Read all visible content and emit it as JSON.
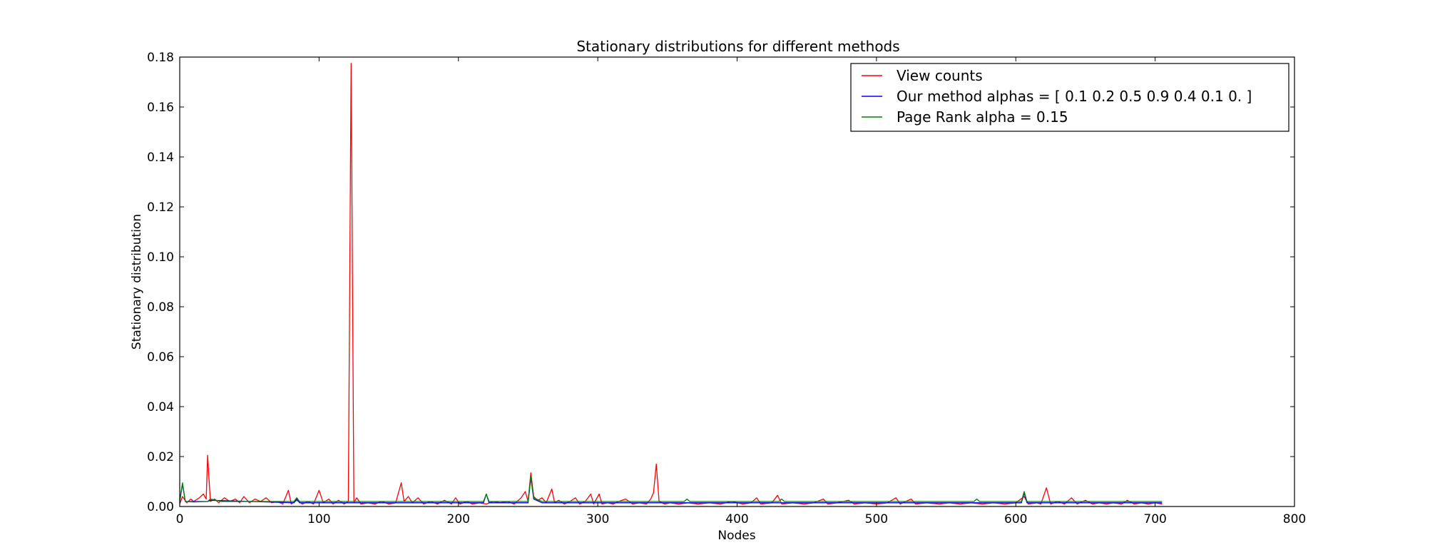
{
  "chart_data": {
    "type": "line",
    "title": "Stationary distributions for different methods",
    "xlabel": "Nodes",
    "ylabel": "Stationary distribution",
    "xlim": [
      0,
      800
    ],
    "ylim": [
      0,
      0.18
    ],
    "xticks": [
      "0",
      "100",
      "200",
      "300",
      "400",
      "500",
      "600",
      "700",
      "800"
    ],
    "yticks": [
      "0.00",
      "0.02",
      "0.04",
      "0.06",
      "0.08",
      "0.10",
      "0.12",
      "0.14",
      "0.16",
      "0.18"
    ],
    "legend_position": "top-right",
    "grid": false,
    "series": [
      {
        "name": "View counts",
        "color": "#ff0000",
        "points": [
          [
            0,
            0.001
          ],
          [
            2,
            0.004
          ],
          [
            5,
            0.0015
          ],
          [
            8,
            0.003
          ],
          [
            10,
            0.002
          ],
          [
            14,
            0.0035
          ],
          [
            17,
            0.005
          ],
          [
            19,
            0.003
          ],
          [
            20,
            0.0205
          ],
          [
            22,
            0.002
          ],
          [
            25,
            0.003
          ],
          [
            28,
            0.0015
          ],
          [
            32,
            0.0035
          ],
          [
            36,
            0.002
          ],
          [
            40,
            0.003
          ],
          [
            43,
            0.0015
          ],
          [
            46,
            0.004
          ],
          [
            50,
            0.0015
          ],
          [
            54,
            0.003
          ],
          [
            58,
            0.002
          ],
          [
            62,
            0.0035
          ],
          [
            66,
            0.0015
          ],
          [
            70,
            0.002
          ],
          [
            74,
            0.001
          ],
          [
            78,
            0.0065
          ],
          [
            80,
            0.001
          ],
          [
            84,
            0.0025
          ],
          [
            88,
            0.001
          ],
          [
            92,
            0.002
          ],
          [
            96,
            0.001
          ],
          [
            100,
            0.0065
          ],
          [
            103,
            0.0015
          ],
          [
            107,
            0.003
          ],
          [
            110,
            0.001
          ],
          [
            114,
            0.0025
          ],
          [
            118,
            0.001
          ],
          [
            121,
            0.002
          ],
          [
            123,
            0.1775
          ],
          [
            125,
            0.0015
          ],
          [
            127,
            0.0035
          ],
          [
            130,
            0.001
          ],
          [
            135,
            0.0015
          ],
          [
            140,
            0.001
          ],
          [
            145,
            0.002
          ],
          [
            150,
            0.001
          ],
          [
            155,
            0.0015
          ],
          [
            159,
            0.0095
          ],
          [
            161,
            0.002
          ],
          [
            164,
            0.004
          ],
          [
            167,
            0.0015
          ],
          [
            171,
            0.0035
          ],
          [
            175,
            0.001
          ],
          [
            180,
            0.002
          ],
          [
            185,
            0.001
          ],
          [
            190,
            0.0025
          ],
          [
            195,
            0.001
          ],
          [
            198,
            0.0035
          ],
          [
            201,
            0.001
          ],
          [
            206,
            0.002
          ],
          [
            210,
            0.001
          ],
          [
            215,
            0.0015
          ],
          [
            220,
            0.001
          ],
          [
            225,
            0.002
          ],
          [
            230,
            0.0015
          ],
          [
            235,
            0.002
          ],
          [
            240,
            0.001
          ],
          [
            245,
            0.0035
          ],
          [
            248,
            0.006
          ],
          [
            250,
            0.002
          ],
          [
            252,
            0.0135
          ],
          [
            254,
            0.004
          ],
          [
            257,
            0.0025
          ],
          [
            260,
            0.0035
          ],
          [
            263,
            0.0015
          ],
          [
            267,
            0.007
          ],
          [
            269,
            0.0015
          ],
          [
            272,
            0.0025
          ],
          [
            276,
            0.001
          ],
          [
            280,
            0.002
          ],
          [
            284,
            0.0035
          ],
          [
            287,
            0.001
          ],
          [
            291,
            0.002
          ],
          [
            295,
            0.005
          ],
          [
            297,
            0.001
          ],
          [
            301,
            0.005
          ],
          [
            303,
            0.001
          ],
          [
            307,
            0.0015
          ],
          [
            311,
            0.001
          ],
          [
            315,
            0.002
          ],
          [
            320,
            0.003
          ],
          [
            325,
            0.001
          ],
          [
            330,
            0.0015
          ],
          [
            335,
            0.001
          ],
          [
            338,
            0.003
          ],
          [
            340,
            0.0055
          ],
          [
            342,
            0.017
          ],
          [
            344,
            0.002
          ],
          [
            348,
            0.001
          ],
          [
            352,
            0.0015
          ],
          [
            358,
            0.001
          ],
          [
            365,
            0.0015
          ],
          [
            372,
            0.001
          ],
          [
            380,
            0.0015
          ],
          [
            388,
            0.001
          ],
          [
            396,
            0.002
          ],
          [
            404,
            0.001
          ],
          [
            410,
            0.0015
          ],
          [
            414,
            0.0035
          ],
          [
            417,
            0.001
          ],
          [
            425,
            0.0015
          ],
          [
            429,
            0.0045
          ],
          [
            432,
            0.001
          ],
          [
            440,
            0.0015
          ],
          [
            448,
            0.001
          ],
          [
            455,
            0.0015
          ],
          [
            462,
            0.003
          ],
          [
            465,
            0.001
          ],
          [
            472,
            0.0015
          ],
          [
            480,
            0.0025
          ],
          [
            484,
            0.001
          ],
          [
            492,
            0.0015
          ],
          [
            500,
            0.001
          ],
          [
            508,
            0.0015
          ],
          [
            514,
            0.0035
          ],
          [
            517,
            0.001
          ],
          [
            525,
            0.003
          ],
          [
            528,
            0.001
          ],
          [
            536,
            0.0015
          ],
          [
            545,
            0.001
          ],
          [
            552,
            0.0015
          ],
          [
            560,
            0.001
          ],
          [
            568,
            0.0015
          ],
          [
            576,
            0.001
          ],
          [
            584,
            0.0015
          ],
          [
            592,
            0.001
          ],
          [
            600,
            0.0015
          ],
          [
            606,
            0.004
          ],
          [
            609,
            0.001
          ],
          [
            615,
            0.0015
          ],
          [
            618,
            0.001
          ],
          [
            622,
            0.0075
          ],
          [
            625,
            0.001
          ],
          [
            630,
            0.002
          ],
          [
            635,
            0.001
          ],
          [
            640,
            0.0035
          ],
          [
            644,
            0.001
          ],
          [
            650,
            0.0025
          ],
          [
            655,
            0.001
          ],
          [
            660,
            0.0015
          ],
          [
            665,
            0.001
          ],
          [
            670,
            0.0015
          ],
          [
            676,
            0.001
          ],
          [
            680,
            0.0025
          ],
          [
            685,
            0.001
          ],
          [
            690,
            0.0015
          ],
          [
            695,
            0.001
          ],
          [
            700,
            0.0015
          ],
          [
            705,
            0.001
          ]
        ]
      },
      {
        "name": "Our method alphas = [ 0.1  0.2  0.5  0.9  0.4  0.1  0. ]",
        "color": "#0000ff",
        "points": [
          [
            0,
            0.002
          ],
          [
            2,
            0.009
          ],
          [
            4,
            0.002
          ],
          [
            20,
            0.002
          ],
          [
            22,
            0.0025
          ],
          [
            82,
            0.0015
          ],
          [
            84,
            0.003
          ],
          [
            86,
            0.0015
          ],
          [
            160,
            0.0015
          ],
          [
            200,
            0.0015
          ],
          [
            218,
            0.0015
          ],
          [
            220,
            0.005
          ],
          [
            222,
            0.0015
          ],
          [
            250,
            0.0015
          ],
          [
            252,
            0.0115
          ],
          [
            254,
            0.003
          ],
          [
            260,
            0.0015
          ],
          [
            300,
            0.0015
          ],
          [
            400,
            0.0015
          ],
          [
            500,
            0.0015
          ],
          [
            604,
            0.0015
          ],
          [
            606,
            0.0055
          ],
          [
            608,
            0.0015
          ],
          [
            700,
            0.0015
          ],
          [
            705,
            0.0015
          ]
        ]
      },
      {
        "name": "Page Rank alpha = 0.15",
        "color": "#008000",
        "points": [
          [
            0,
            0.0025
          ],
          [
            2,
            0.0095
          ],
          [
            4,
            0.002
          ],
          [
            10,
            0.0018
          ],
          [
            20,
            0.002
          ],
          [
            22,
            0.003
          ],
          [
            30,
            0.002
          ],
          [
            60,
            0.002
          ],
          [
            82,
            0.002
          ],
          [
            84,
            0.0035
          ],
          [
            86,
            0.002
          ],
          [
            100,
            0.002
          ],
          [
            130,
            0.002
          ],
          [
            160,
            0.002
          ],
          [
            200,
            0.002
          ],
          [
            218,
            0.002
          ],
          [
            220,
            0.005
          ],
          [
            222,
            0.002
          ],
          [
            250,
            0.002
          ],
          [
            252,
            0.012
          ],
          [
            254,
            0.0035
          ],
          [
            260,
            0.002
          ],
          [
            300,
            0.002
          ],
          [
            362,
            0.002
          ],
          [
            364,
            0.003
          ],
          [
            366,
            0.002
          ],
          [
            400,
            0.002
          ],
          [
            430,
            0.002
          ],
          [
            432,
            0.003
          ],
          [
            434,
            0.002
          ],
          [
            500,
            0.002
          ],
          [
            570,
            0.002
          ],
          [
            572,
            0.003
          ],
          [
            574,
            0.002
          ],
          [
            604,
            0.002
          ],
          [
            606,
            0.006
          ],
          [
            608,
            0.002
          ],
          [
            650,
            0.002
          ],
          [
            700,
            0.002
          ],
          [
            705,
            0.002
          ]
        ]
      }
    ]
  }
}
